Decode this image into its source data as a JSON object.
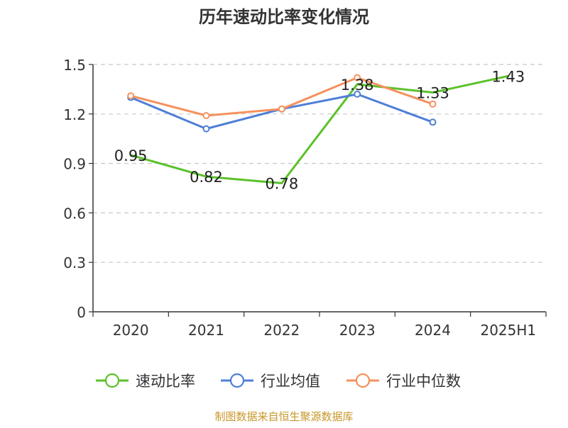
{
  "chart_data": {
    "type": "line",
    "title": "历年速动比率变化情况",
    "categories": [
      "2020",
      "2021",
      "2022",
      "2023",
      "2024",
      "2025H1"
    ],
    "y_ticks": [
      "0",
      "0.3",
      "0.6",
      "0.9",
      "1.2",
      "1.5"
    ],
    "ylim": [
      0,
      1.5
    ],
    "grid": true,
    "legend_position": "bottom",
    "series": [
      {
        "name": "速动比率",
        "color": "#5bc12a",
        "values": [
          0.95,
          0.82,
          0.78,
          1.38,
          1.33,
          1.43
        ],
        "labels": [
          "0.95",
          "0.82",
          "0.78",
          "1.38",
          "1.33",
          "1.43"
        ],
        "show_markers": false
      },
      {
        "name": "行业均值",
        "color": "#4e7fd8",
        "values": [
          1.3,
          1.11,
          1.23,
          1.32,
          1.15,
          null
        ],
        "show_markers": true
      },
      {
        "name": "行业中位数",
        "color": "#f5915d",
        "values": [
          1.31,
          1.19,
          1.23,
          1.42,
          1.26,
          null
        ],
        "show_markers": true
      }
    ],
    "source": "制图数据来自恒生聚源数据库",
    "source_color": "#c8962a"
  }
}
